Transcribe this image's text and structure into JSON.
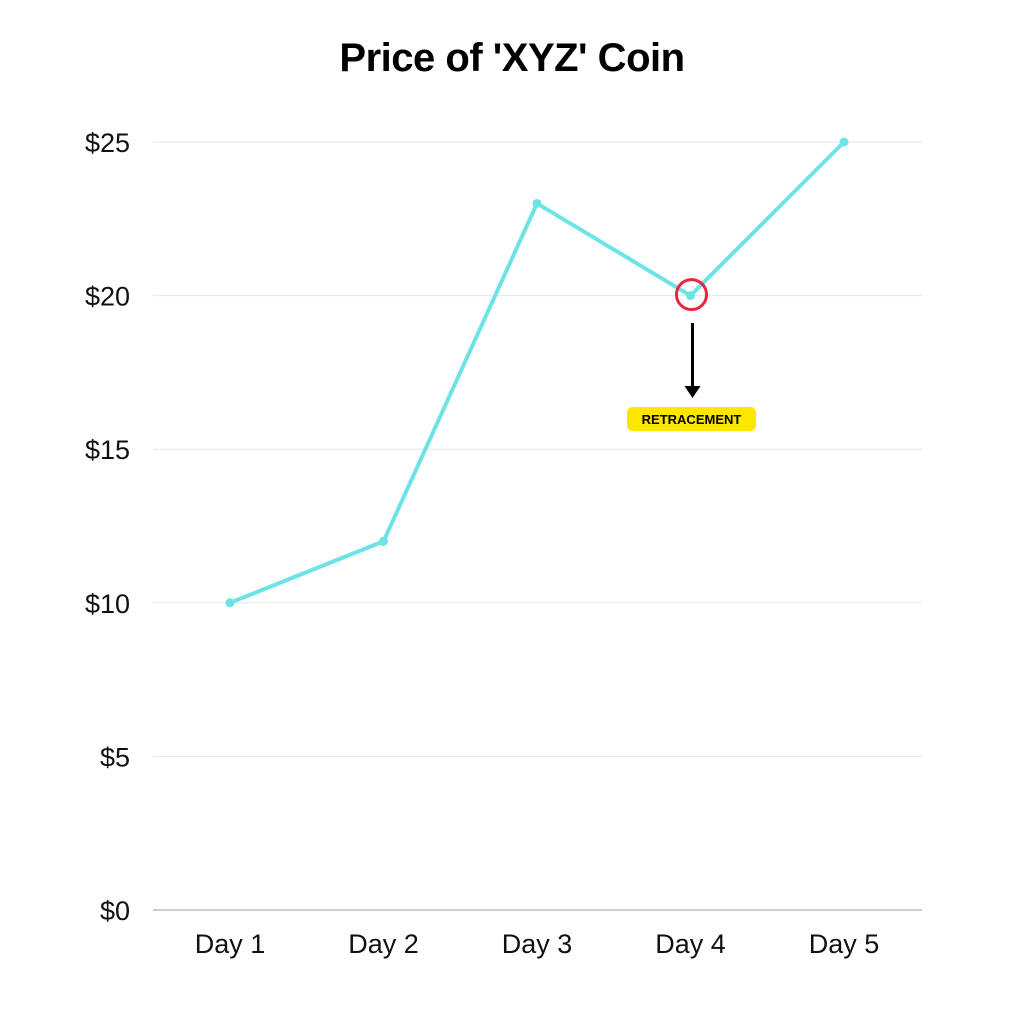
{
  "chart_data": {
    "type": "line",
    "title": "Price of 'XYZ' Coin",
    "xlabel": "",
    "ylabel": "",
    "categories": [
      "Day 1",
      "Day 2",
      "Day 3",
      "Day 4",
      "Day 5"
    ],
    "series": [
      {
        "values": [
          10,
          12,
          23,
          20,
          25
        ]
      }
    ],
    "ylim": [
      0,
      25
    ],
    "yticks": [
      0,
      5,
      10,
      15,
      20,
      25
    ],
    "ytick_labels": [
      "$0",
      "$5",
      "$10",
      "$15",
      "$20",
      "$25"
    ],
    "grid": true,
    "annotation": {
      "category": "Day 4",
      "value": 20,
      "text": "RETRACEMENT"
    },
    "colors": {
      "line": "#6de3e6",
      "grid": "#e6e6e6",
      "axis": "#bdbdbd",
      "highlight": "#e8273f",
      "arrow": "#000000",
      "badge": "#ffe600"
    }
  }
}
